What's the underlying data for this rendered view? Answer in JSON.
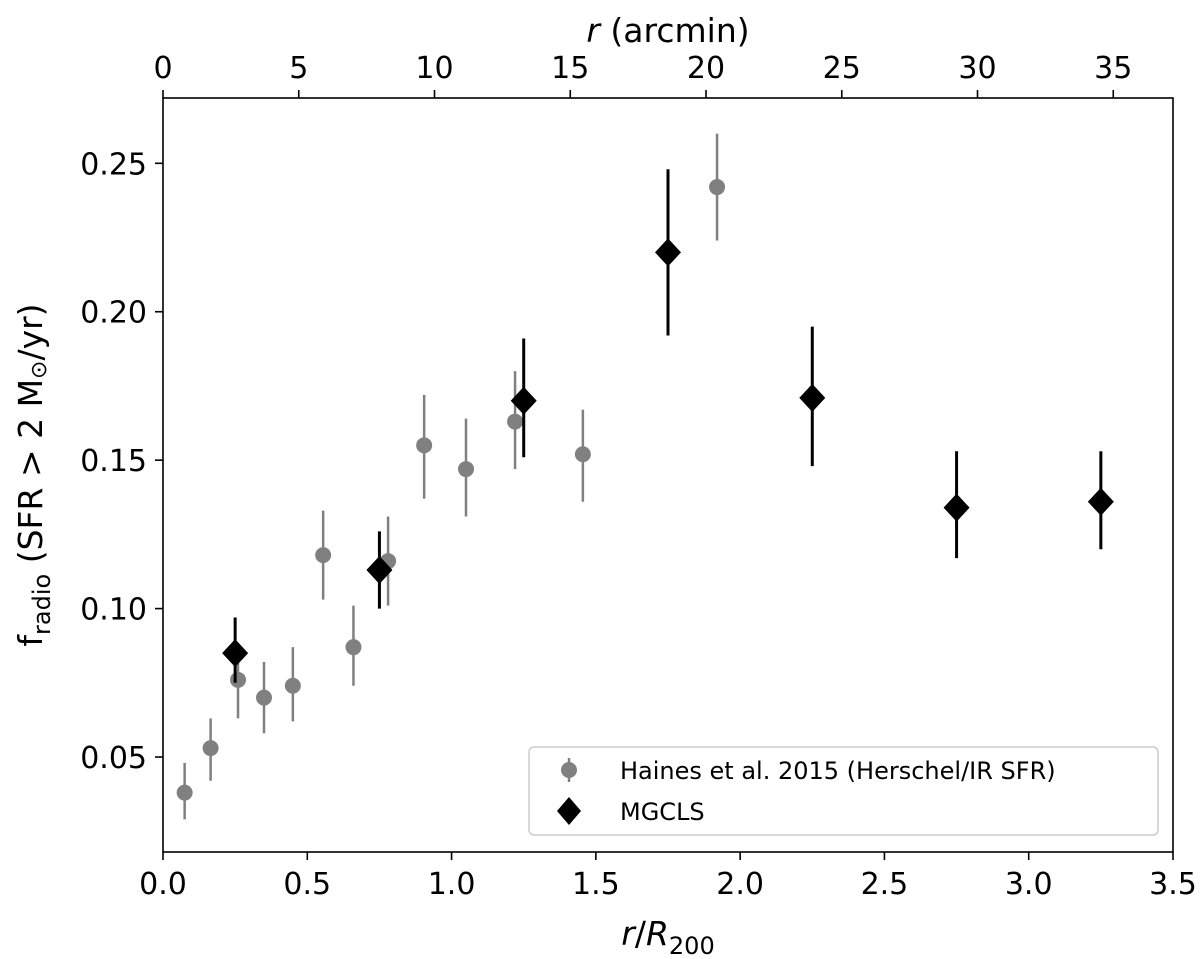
{
  "chart_data": {
    "type": "scatter",
    "xlabel_bottom": {
      "italic": "r",
      "slash": "/",
      "italic2": "R",
      "sub": "200"
    },
    "xlabel_top": {
      "italic": "r",
      "rest": " (arcmin)"
    },
    "ylabel": {
      "main": "f",
      "sub": "radio",
      "rest": " (SFR > 2 M",
      "sun": "⊙",
      "tail": "/yr)"
    },
    "xlim": [
      0,
      3.5
    ],
    "ylim": [
      0.018,
      0.272
    ],
    "top_xlim": [
      0,
      37.2
    ],
    "x_ticks": [
      "0.0",
      "0.5",
      "1.0",
      "1.5",
      "2.0",
      "2.5",
      "3.0",
      "3.5"
    ],
    "y_ticks": [
      "0.05",
      "0.10",
      "0.15",
      "0.20",
      "0.25"
    ],
    "top_ticks": [
      "0",
      "5",
      "10",
      "15",
      "20",
      "25",
      "30",
      "35"
    ],
    "legend_position": "lower-right",
    "series": [
      {
        "name": "Haines et al. 2015 (Herschel/IR SFR)",
        "color": "#808080",
        "marker": "circle",
        "points": [
          {
            "x": 0.075,
            "y": 0.038,
            "lo": 0.029,
            "hi": 0.048
          },
          {
            "x": 0.165,
            "y": 0.053,
            "lo": 0.042,
            "hi": 0.063
          },
          {
            "x": 0.26,
            "y": 0.076,
            "lo": 0.063,
            "hi": 0.087
          },
          {
            "x": 0.35,
            "y": 0.07,
            "lo": 0.058,
            "hi": 0.082
          },
          {
            "x": 0.45,
            "y": 0.074,
            "lo": 0.062,
            "hi": 0.087
          },
          {
            "x": 0.555,
            "y": 0.118,
            "lo": 0.103,
            "hi": 0.133
          },
          {
            "x": 0.66,
            "y": 0.087,
            "lo": 0.074,
            "hi": 0.101
          },
          {
            "x": 0.78,
            "y": 0.116,
            "lo": 0.101,
            "hi": 0.131
          },
          {
            "x": 0.905,
            "y": 0.155,
            "lo": 0.137,
            "hi": 0.172
          },
          {
            "x": 1.05,
            "y": 0.147,
            "lo": 0.131,
            "hi": 0.164
          },
          {
            "x": 1.22,
            "y": 0.163,
            "lo": 0.147,
            "hi": 0.18
          },
          {
            "x": 1.455,
            "y": 0.152,
            "lo": 0.136,
            "hi": 0.167
          },
          {
            "x": 1.92,
            "y": 0.242,
            "lo": 0.224,
            "hi": 0.26
          }
        ]
      },
      {
        "name": "MGCLS",
        "color": "#000000",
        "marker": "diamond",
        "points": [
          {
            "x": 0.25,
            "y": 0.085,
            "lo": 0.075,
            "hi": 0.097
          },
          {
            "x": 0.75,
            "y": 0.113,
            "lo": 0.1,
            "hi": 0.126
          },
          {
            "x": 1.25,
            "y": 0.17,
            "lo": 0.151,
            "hi": 0.191
          },
          {
            "x": 1.75,
            "y": 0.22,
            "lo": 0.192,
            "hi": 0.248
          },
          {
            "x": 2.25,
            "y": 0.171,
            "lo": 0.148,
            "hi": 0.195
          },
          {
            "x": 2.75,
            "y": 0.134,
            "lo": 0.117,
            "hi": 0.153
          },
          {
            "x": 3.25,
            "y": 0.136,
            "lo": 0.12,
            "hi": 0.153
          }
        ]
      }
    ]
  }
}
